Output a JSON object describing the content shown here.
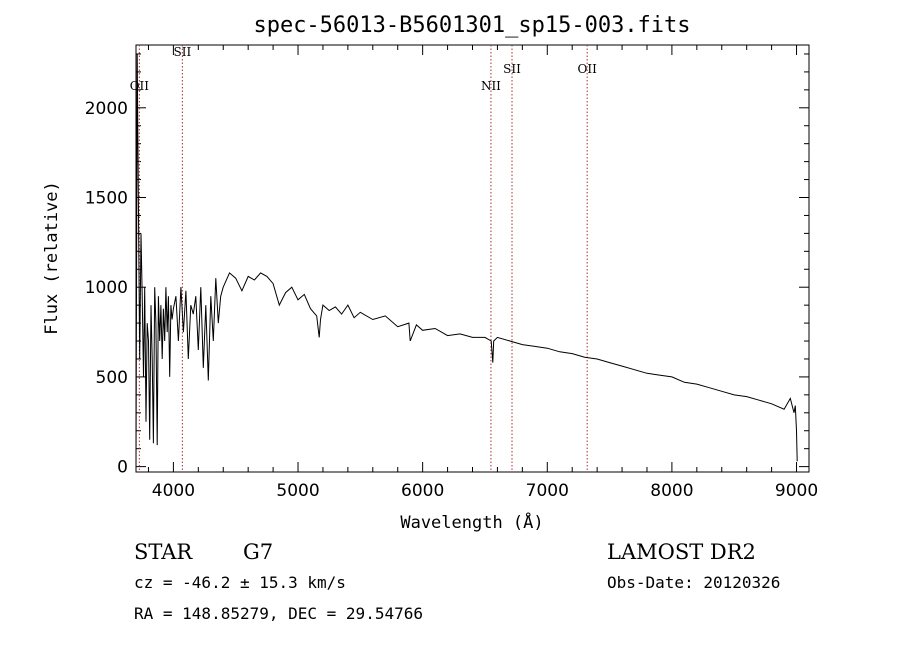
{
  "chart_data": {
    "type": "line",
    "title": "spec-56013-B5601301_sp15-003.fits",
    "xlabel": "Wavelength (Å)",
    "ylabel": "Flux (relative)",
    "xlim": [
      3700,
      9100
    ],
    "ylim": [
      -30,
      2350
    ],
    "x_ticks": [
      4000,
      5000,
      6000,
      7000,
      8000,
      9000
    ],
    "y_ticks": [
      0,
      500,
      1000,
      1500,
      2000
    ],
    "grid": false,
    "series": [
      {
        "color": "#000000",
        "x": [
          3700,
          3710,
          3720,
          3730,
          3740,
          3750,
          3760,
          3770,
          3780,
          3790,
          3800,
          3810,
          3820,
          3830,
          3840,
          3850,
          3860,
          3870,
          3880,
          3890,
          3900,
          3910,
          3920,
          3930,
          3940,
          3950,
          3960,
          3970,
          3980,
          3990,
          4000,
          4020,
          4040,
          4060,
          4080,
          4100,
          4120,
          4140,
          4160,
          4180,
          4200,
          4220,
          4240,
          4260,
          4280,
          4300,
          4320,
          4340,
          4360,
          4380,
          4400,
          4450,
          4500,
          4550,
          4600,
          4650,
          4700,
          4750,
          4800,
          4850,
          4900,
          4950,
          5000,
          5050,
          5100,
          5150,
          5170,
          5180,
          5200,
          5250,
          5300,
          5350,
          5400,
          5450,
          5500,
          5600,
          5700,
          5800,
          5890,
          5900,
          5950,
          6000,
          6100,
          6200,
          6300,
          6400,
          6500,
          6550,
          6563,
          6570,
          6600,
          6700,
          6800,
          6900,
          7000,
          7100,
          7200,
          7300,
          7400,
          7500,
          7600,
          7700,
          7800,
          7900,
          8000,
          8100,
          8200,
          8300,
          8400,
          8500,
          8600,
          8700,
          8800,
          8900,
          8950,
          8980,
          8990,
          9000,
          9005
        ],
        "y": [
          0,
          2300,
          1400,
          600,
          1300,
          950,
          500,
          1000,
          250,
          800,
          700,
          150,
          900,
          600,
          130,
          1000,
          800,
          120,
          950,
          700,
          900,
          600,
          880,
          700,
          1000,
          750,
          950,
          500,
          900,
          820,
          880,
          950,
          700,
          1000,
          750,
          980,
          600,
          900,
          850,
          950,
          650,
          1000,
          550,
          900,
          480,
          950,
          700,
          1050,
          800,
          950,
          1000,
          1080,
          1050,
          980,
          1060,
          1040,
          1080,
          1060,
          1020,
          900,
          970,
          1000,
          930,
          960,
          880,
          840,
          720,
          820,
          900,
          870,
          890,
          850,
          900,
          830,
          860,
          820,
          840,
          780,
          800,
          700,
          790,
          760,
          770,
          730,
          740,
          720,
          720,
          700,
          580,
          700,
          720,
          700,
          680,
          670,
          660,
          640,
          630,
          610,
          600,
          580,
          560,
          540,
          520,
          510,
          500,
          470,
          460,
          440,
          420,
          400,
          390,
          370,
          350,
          320,
          380,
          300,
          340,
          200,
          30
        ]
      }
    ],
    "spectral_lines": [
      {
        "label": "OII",
        "wavelength": 3727
      },
      {
        "label": "SII",
        "wavelength": 4072
      },
      {
        "label": "NII",
        "wavelength": 6548
      },
      {
        "label": "SII",
        "wavelength": 6717
      },
      {
        "label": "OII",
        "wavelength": 7320
      }
    ]
  },
  "info": {
    "object_class": "STAR",
    "subclass": "G7",
    "survey": "LAMOST DR2",
    "redshift_line": "cz = -46.2 ± 15.3 km/s",
    "obs_date_line": "Obs-Date: 20120326",
    "coords_line": "RA = 148.85279, DEC =  29.54766"
  },
  "colors": {
    "spectrum": "#000000",
    "line_marker": "#b03030",
    "axes": "#000000"
  }
}
